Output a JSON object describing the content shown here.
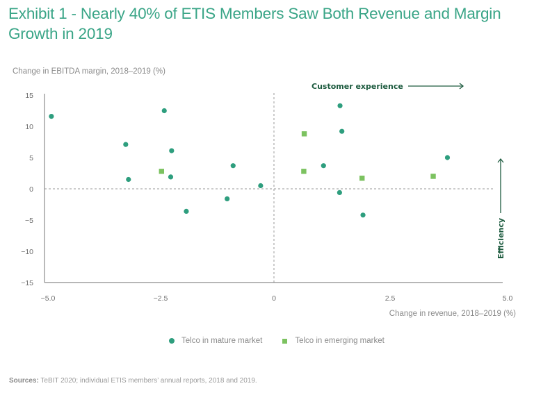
{
  "chart_data": {
    "type": "scatter",
    "title": "Exhibit 1 - Nearly 40% of ETIS Members Saw Both Revenue and Margin Growth in 2019",
    "xlabel": "Change in revenue, 2018–2019 (%)",
    "ylabel": "Change in EBITDA margin, 2018–2019 (%)",
    "xlim": [
      -5.0,
      5.0
    ],
    "ylim": [
      -15,
      15
    ],
    "x_ticks": [
      -5.0,
      -2.5,
      0,
      2.5,
      5.0
    ],
    "x_tick_labels": [
      "−5.0",
      "−2.5",
      "0",
      "2.5",
      "5.0"
    ],
    "y_ticks": [
      15,
      10,
      5,
      0,
      -5,
      -10,
      -15
    ],
    "y_tick_labels": [
      "15",
      "10",
      "5",
      "0",
      "−5",
      "−10",
      "−15"
    ],
    "grid": false,
    "reference_lines": {
      "x": 0,
      "y": 0,
      "style": "dashed"
    },
    "legend_position": "bottom-center",
    "series": [
      {
        "name": "Telco in mature market",
        "marker": "circle",
        "color": "#2e9e7e",
        "points": [
          {
            "x": -4.85,
            "y": 11.6
          },
          {
            "x": -3.23,
            "y": 7.1
          },
          {
            "x": -3.17,
            "y": 1.5
          },
          {
            "x": -2.39,
            "y": 12.5
          },
          {
            "x": -2.23,
            "y": 6.1
          },
          {
            "x": -2.25,
            "y": 1.9
          },
          {
            "x": -0.89,
            "y": 3.7
          },
          {
            "x": -0.29,
            "y": 0.5
          },
          {
            "x": -1.02,
            "y": -1.6
          },
          {
            "x": -1.91,
            "y": -3.6
          },
          {
            "x": 1.44,
            "y": 13.3
          },
          {
            "x": 1.48,
            "y": 9.2
          },
          {
            "x": 1.08,
            "y": 3.7
          },
          {
            "x": 1.43,
            "y": -0.6
          },
          {
            "x": 1.94,
            "y": -4.2
          },
          {
            "x": 3.78,
            "y": 5.0
          }
        ]
      },
      {
        "name": "Telco in emerging market",
        "marker": "square",
        "color": "#7cc260",
        "points": [
          {
            "x": -2.45,
            "y": 2.8
          },
          {
            "x": 0.66,
            "y": 8.8
          },
          {
            "x": 0.65,
            "y": 2.8
          },
          {
            "x": 1.92,
            "y": 1.7
          },
          {
            "x": 3.47,
            "y": 2.0
          }
        ]
      }
    ],
    "annotations": [
      {
        "text": "Customer experience",
        "arrow": "right"
      },
      {
        "text": "Efficiency",
        "arrow": "up"
      }
    ]
  },
  "title": "Exhibit 1 - Nearly 40% of ETIS Members Saw Both Revenue and Margin Growth in 2019",
  "legend": {
    "mature": "Telco in mature market",
    "emerging": "Telco in emerging market"
  },
  "source": {
    "label": "Sources:",
    "text": " TeBIT 2020; individual ETIS members’ annual reports, 2018 and 2019."
  },
  "colors": {
    "title": "#3aa587",
    "mature": "#2e9e7e",
    "emerging": "#7cc260",
    "annotation": "#1d5b3f"
  }
}
